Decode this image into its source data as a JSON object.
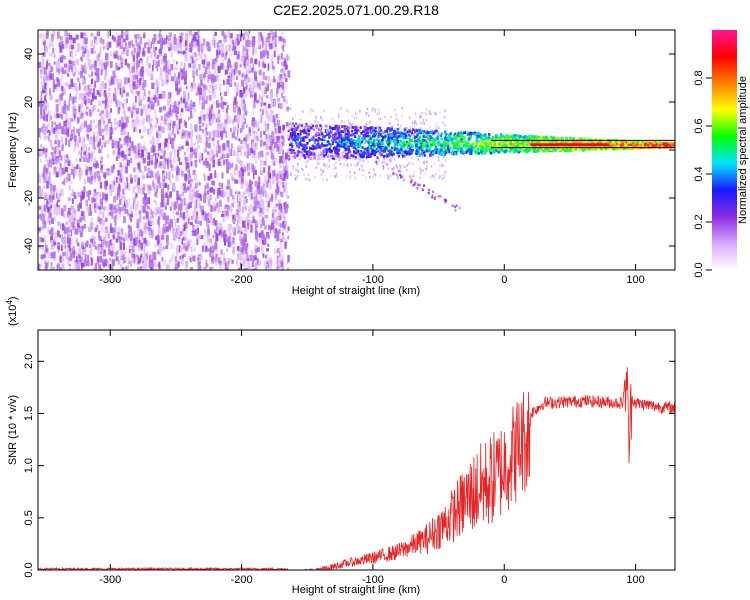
{
  "title": "C2E2.2025.071.00.29.R18",
  "chart_data": [
    {
      "type": "heatmap",
      "xlabel": "Height of straight line (km)",
      "ylabel": "Frequency (Hz)",
      "xlim": [
        -355,
        130
      ],
      "ylim": [
        -50,
        50
      ],
      "xticks": [
        -300,
        -200,
        -100,
        0,
        100
      ],
      "yticks": [
        -40,
        -20,
        0,
        20,
        40
      ],
      "noise_region_x": [
        -355,
        -165
      ],
      "signal_region_x": [
        -165,
        130
      ],
      "doppler_line_y": [
        1,
        4
      ],
      "tail_feature": {
        "x_end": -31,
        "y_end": -26
      },
      "colorbar": {
        "label": "Normalized spectral amplitude",
        "ticks": [
          0.0,
          0.2,
          0.4,
          0.6,
          0.8
        ],
        "range": [
          0,
          1
        ],
        "colors": [
          "#ffffff",
          "#d7a8ff",
          "#8a2be2",
          "#1a1aff",
          "#00e5ff",
          "#00ff00",
          "#ffff00",
          "#ff8000",
          "#ff0000",
          "#ff1493"
        ]
      }
    },
    {
      "type": "line",
      "xlabel": "Height of straight line (km)",
      "ylabel": "SNR (10 * v/v)",
      "y_multiplier": "(x10",
      "y_exponent": "4",
      "y_multiplier_close": ")",
      "xlim": [
        -355,
        130
      ],
      "ylim": [
        0.0,
        2.3
      ],
      "xticks": [
        -300,
        -200,
        -100,
        0,
        100
      ],
      "yticks": [
        0.0,
        0.5,
        1.0,
        1.5,
        2.0
      ],
      "color": "#ee2222",
      "profile": {
        "x": [
          -355,
          -165,
          -140,
          -120,
          -100,
          -80,
          -60,
          -45,
          -35,
          -25,
          -15,
          -5,
          0,
          10,
          20,
          30,
          60,
          90,
          93,
          95,
          97,
          100,
          115,
          130
        ],
        "y": [
          0.01,
          0.01,
          0.05,
          0.12,
          0.18,
          0.25,
          0.38,
          0.55,
          0.7,
          0.85,
          0.95,
          1.05,
          1.15,
          1.32,
          1.5,
          1.6,
          1.62,
          1.6,
          1.9,
          1.2,
          1.65,
          1.6,
          1.57,
          1.55
        ]
      }
    }
  ]
}
